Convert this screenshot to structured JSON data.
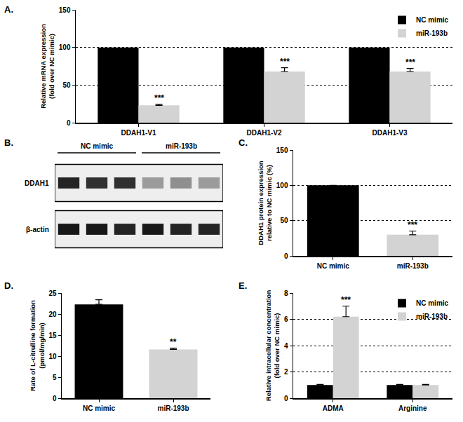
{
  "chart_data": [
    {
      "panel": "A.",
      "type": "bar",
      "y_label": "Relative mRNA expression\n(fold over NC mimic)",
      "categories": [
        "DDAH1-V1",
        "DDAH1-V2",
        "DDAH1-V3"
      ],
      "series": [
        {
          "name": "NC mimic",
          "color": "#000000",
          "values": [
            100,
            100,
            100
          ]
        },
        {
          "name": "miR-193b",
          "color": "#d3d3d3",
          "values": [
            23,
            68,
            68
          ],
          "errors": [
            1.5,
            5,
            4
          ]
        }
      ],
      "ylim": [
        0,
        150
      ],
      "yticks": [
        0,
        50,
        100,
        150
      ],
      "grid": true,
      "legend": "upper right",
      "annotations": [
        {
          "category": "DDAH1-V1",
          "series": "miR-193b",
          "text": "***"
        },
        {
          "category": "DDAH1-V2",
          "series": "miR-193b",
          "text": "***"
        },
        {
          "category": "DDAH1-V3",
          "series": "miR-193b",
          "text": "***"
        }
      ]
    },
    {
      "panel": "B.",
      "type": "blot",
      "groups": [
        {
          "label": "NC mimic",
          "lanes": 3
        },
        {
          "label": "miR-193b",
          "lanes": 3
        }
      ],
      "rows": [
        {
          "label": "DDAH1",
          "intensity": [
            0.85,
            0.8,
            0.8,
            0.35,
            0.4,
            0.35
          ]
        },
        {
          "label": "β-actin",
          "intensity": [
            0.9,
            0.9,
            0.85,
            0.9,
            0.85,
            0.85
          ]
        }
      ]
    },
    {
      "panel": "C.",
      "type": "bar",
      "y_label": "DDAH1 protein expression\nrelative to NC mimic (%)",
      "categories": [
        "NC mimic",
        "miR-193b"
      ],
      "values": [
        100,
        30
      ],
      "errors": [
        null,
        5
      ],
      "colors": [
        "#000000",
        "#d3d3d3"
      ],
      "ylim": [
        0,
        150
      ],
      "yticks": [
        0,
        50,
        100,
        150
      ],
      "grid": true,
      "annotations": [
        {
          "category": "miR-193b",
          "text": "***"
        }
      ]
    },
    {
      "panel": "D.",
      "type": "bar",
      "y_label": "Rate of L-citrulline formation\n(pmol/mg/min)",
      "categories": [
        "NC mimic",
        "miR-193b"
      ],
      "values": [
        22.3,
        11.6
      ],
      "errors": [
        1.1,
        0.3
      ],
      "colors": [
        "#000000",
        "#d3d3d3"
      ],
      "ylim": [
        0,
        25
      ],
      "yticks": [
        0,
        5,
        10,
        15,
        20,
        25
      ],
      "grid": false,
      "annotations": [
        {
          "category": "miR-193b",
          "text": "**"
        }
      ]
    },
    {
      "panel": "E.",
      "type": "bar",
      "y_label": "Relative intracellular concentration\n(fold over NC mimic)",
      "categories": [
        "ADMA",
        "Arginine"
      ],
      "series": [
        {
          "name": "NC mimic",
          "color": "#000000",
          "values": [
            1,
            1
          ],
          "errors": [
            0.05,
            0.05
          ]
        },
        {
          "name": "miR-193b",
          "color": "#d3d3d3",
          "values": [
            6.2,
            1.0
          ],
          "errors": [
            0.8,
            0.05
          ]
        }
      ],
      "ylim": [
        0,
        8
      ],
      "yticks": [
        0,
        2,
        4,
        6,
        8
      ],
      "grid": true,
      "legend": "upper right",
      "annotations": [
        {
          "category": "ADMA",
          "series": "miR-193b",
          "text": "***"
        }
      ]
    }
  ]
}
